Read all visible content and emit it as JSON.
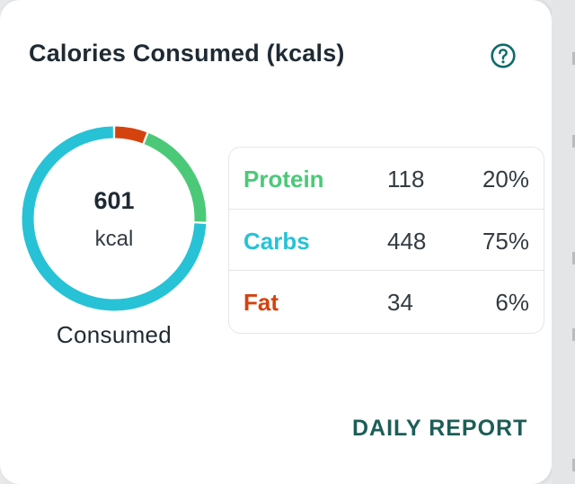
{
  "card": {
    "title": "Calories Consumed (kcals)",
    "help_icon": "question-circle-icon",
    "report_label": "DAILY REPORT"
  },
  "summary": {
    "value": "601",
    "unit": "kcal",
    "caption": "Consumed"
  },
  "macros": [
    {
      "name": "Protein",
      "grams": "118",
      "percent": "20%",
      "color": "#4cc978"
    },
    {
      "name": "Carbs",
      "grams": "448",
      "percent": "75%",
      "color": "#27c2d6"
    },
    {
      "name": "Fat",
      "grams": "34",
      "percent": "6%",
      "color": "#d4420f"
    }
  ],
  "colors": {
    "title": "#1f2a33",
    "accent_dark_teal": "#1d5d57",
    "help_icon": "#0f6b6a",
    "divider": "#e3e6e9"
  }
}
